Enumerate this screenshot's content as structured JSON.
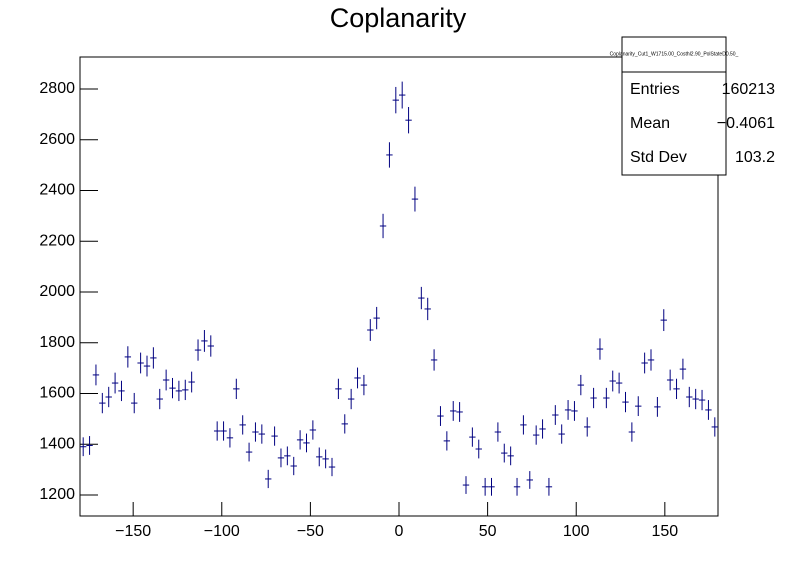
{
  "chart_data": {
    "type": "histogram",
    "title": "Coplanarity",
    "color": "#000080",
    "xlim": [
      -180,
      180
    ],
    "xticks": [
      {
        "value": -150,
        "label": "−150"
      },
      {
        "value": -100,
        "label": "−100"
      },
      {
        "value": -50,
        "label": "−50"
      },
      0,
      50,
      100,
      150
    ],
    "ylim": [
      1117,
      2926
    ],
    "yticks": [
      1200,
      1400,
      1600,
      1800,
      2000,
      2200,
      2400,
      2600,
      2800
    ],
    "bins": [
      -180,
      -176.4,
      -172.8,
      -169.2,
      -165.6,
      -162,
      -158.4,
      -154.8,
      -151.2,
      -147.6,
      -144,
      -140.4,
      -136.8,
      -133.2,
      -129.6,
      -126,
      -122.4,
      -118.8,
      -115.2,
      -111.6,
      -108,
      -104.4,
      -100.8,
      -97.2,
      -93.6,
      -90,
      -86.4,
      -82.8,
      -79.2,
      -75.6,
      -72,
      -68.4,
      -64.8,
      -61.2,
      -57.6,
      -54,
      -50.4,
      -46.8,
      -43.2,
      -39.6,
      -36,
      -32.4,
      -28.8,
      -25.2,
      -21.6,
      -18,
      -14.4,
      -10.8,
      -7.2,
      -3.6,
      0,
      3.6,
      7.2,
      10.8,
      14.4,
      18,
      21.6,
      25.2,
      28.8,
      32.4,
      36,
      39.6,
      43.2,
      46.8,
      50.4,
      54,
      57.6,
      61.2,
      64.8,
      68.4,
      72,
      75.6,
      79.2,
      82.8,
      86.4,
      90,
      93.6,
      97.2,
      100.8,
      104.4,
      108,
      111.6,
      115.2,
      118.8,
      122.4,
      126,
      129.6,
      133.2,
      136.8,
      140.4,
      144,
      147.6,
      151.2,
      154.8,
      158.4,
      162,
      165.6,
      169.2,
      172.8,
      176.4,
      180
    ],
    "values": [
      1390,
      1395,
      1673,
      1562,
      1586,
      1641,
      1610,
      1744,
      1562,
      1720,
      1708,
      1740,
      1578,
      1653,
      1621,
      1610,
      1614,
      1645,
      1771,
      1807,
      1787,
      1452,
      1452,
      1425,
      1618,
      1476,
      1369,
      1448,
      1440,
      1263,
      1432,
      1346,
      1354,
      1314,
      1417,
      1405,
      1456,
      1350,
      1342,
      1310,
      1618,
      1480,
      1578,
      1661,
      1633,
      1850,
      1897,
      2260,
      2540,
      2756,
      2776,
      2677,
      2366,
      1976,
      1933,
      1732,
      1511,
      1413,
      1531,
      1527,
      1239,
      1428,
      1381,
      1232,
      1232,
      1448,
      1365,
      1354,
      1232,
      1476,
      1259,
      1436,
      1460,
      1232,
      1515,
      1440,
      1535,
      1531,
      1633,
      1468,
      1582,
      1775,
      1582,
      1649,
      1641,
      1566,
      1448,
      1550,
      1720,
      1732,
      1547,
      1889,
      1653,
      1618,
      1696,
      1586,
      1578,
      1574,
      1535,
      1468
    ],
    "errors": [
      37,
      37,
      41,
      40,
      40,
      41,
      40,
      42,
      40,
      41,
      41,
      42,
      40,
      41,
      40,
      40,
      40,
      41,
      42,
      43,
      42,
      38,
      38,
      38,
      40,
      38,
      37,
      38,
      38,
      36,
      38,
      37,
      37,
      36,
      38,
      37,
      38,
      37,
      37,
      36,
      40,
      38,
      40,
      41,
      40,
      43,
      44,
      48,
      50,
      52,
      53,
      52,
      49,
      44,
      44,
      42,
      39,
      38,
      39,
      39,
      35,
      38,
      37,
      35,
      35,
      38,
      37,
      37,
      35,
      38,
      35,
      38,
      38,
      35,
      39,
      38,
      39,
      39,
      40,
      38,
      40,
      42,
      40,
      41,
      41,
      40,
      38,
      39,
      41,
      42,
      39,
      43,
      41,
      40,
      41,
      40,
      40,
      40,
      39,
      38
    ],
    "stats": {
      "name": "Coplanarity_Cut1_W1715.00_Costhl2.90_PolStateD0.50_",
      "rows": [
        {
          "label": "Entries",
          "value": "160213"
        },
        {
          "label": "Mean",
          "value": "−0.4061"
        },
        {
          "label": "Std Dev",
          "value": "103.2"
        }
      ]
    }
  }
}
